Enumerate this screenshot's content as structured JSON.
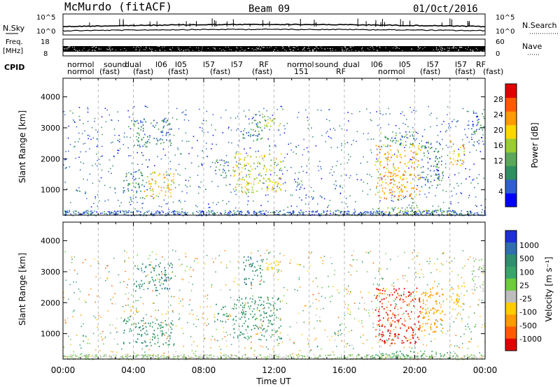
{
  "header": {
    "station": "McMurdo (fitACF)",
    "beam": "Beam 09",
    "date": "01/Oct/2016"
  },
  "top_panels": {
    "noise": {
      "left_label": "N.Sky",
      "right_label": "N.Search",
      "left_ticks": [
        "10^5",
        "10^0"
      ],
      "right_ticks": [
        "10^5",
        "10^0"
      ]
    },
    "freq_nave": {
      "left_label_1": "Freq.",
      "left_label_2": "[MHz]",
      "right_label": "Nave",
      "left_ticks": [
        "18",
        "8"
      ],
      "right_ticks": [
        "60",
        "0"
      ]
    },
    "cpid": {
      "left_label": "CPID",
      "modes_row1": [
        "normol",
        "sound",
        "dual",
        "l06",
        "l05",
        "l57",
        "l57",
        "RF"
      ],
      "modes_row2": [
        "normol",
        "(fast)",
        "(fast)",
        "(fast)",
        "(fast)",
        "(fast)",
        "151",
        "RF"
      ]
    }
  },
  "chart_data": [
    {
      "type": "heatmap",
      "name": "power",
      "ylabel": "Slant Range [km]",
      "ylim": [
        180,
        4600
      ],
      "yticks": [
        1000,
        2000,
        3000,
        4000
      ],
      "xlim_hours": [
        0,
        24
      ],
      "colorbar": {
        "label": "Power [dB]",
        "range": [
          0,
          32
        ],
        "ticks": [
          "4",
          "8",
          "12",
          "16",
          "20",
          "24",
          "28"
        ],
        "colors": [
          "#0000ff",
          "#2f5fd0",
          "#2f8f60",
          "#5aa95a",
          "#9acd32",
          "#ffd700",
          "#ff9a00",
          "#ff5a00",
          "#e00000"
        ]
      },
      "regions": [
        {
          "t0": 0.7,
          "t1": 1.3,
          "r0": 850,
          "r1": 1050,
          "value": 8
        },
        {
          "t0": 3.4,
          "t1": 4.6,
          "r0": 700,
          "r1": 1600,
          "value": 10
        },
        {
          "t0": 4.6,
          "t1": 6.3,
          "r0": 750,
          "r1": 1600,
          "value": 20
        },
        {
          "t0": 4.0,
          "t1": 6.2,
          "r0": 2400,
          "r1": 3300,
          "value": 9
        },
        {
          "t0": 8.6,
          "t1": 9.4,
          "r0": 1400,
          "r1": 2000,
          "value": 9
        },
        {
          "t0": 9.6,
          "t1": 12.4,
          "r0": 900,
          "r1": 2200,
          "value": 18
        },
        {
          "t0": 10.2,
          "t1": 11.4,
          "r0": 2600,
          "r1": 3500,
          "value": 10
        },
        {
          "t0": 11.4,
          "t1": 12.4,
          "r0": 3000,
          "r1": 3400,
          "value": 16
        },
        {
          "t0": 13.2,
          "t1": 13.6,
          "r0": 1000,
          "r1": 1500,
          "value": 8
        },
        {
          "t0": 15.4,
          "t1": 15.8,
          "r0": 900,
          "r1": 1300,
          "value": 8
        },
        {
          "t0": 17.7,
          "t1": 20.3,
          "r0": 700,
          "r1": 2500,
          "value": 22
        },
        {
          "t0": 18.0,
          "t1": 20.0,
          "r0": 2400,
          "r1": 2900,
          "value": 10
        },
        {
          "t0": 20.3,
          "t1": 21.6,
          "r0": 1000,
          "r1": 2600,
          "value": 8
        },
        {
          "t0": 22.0,
          "t1": 22.8,
          "r0": 1800,
          "r1": 2600,
          "value": 22
        },
        {
          "t0": 23.2,
          "t1": 23.9,
          "r0": 2400,
          "r1": 3500,
          "value": 8
        },
        {
          "t0": 17.5,
          "t1": 22.0,
          "r0": 200,
          "r1": 450,
          "value": 14
        }
      ]
    },
    {
      "type": "heatmap",
      "name": "velocity",
      "ylabel": "Slant Range [km]",
      "xlabel": "Time UT",
      "ylim": [
        180,
        4600
      ],
      "yticks": [
        1000,
        2000,
        3000,
        4000
      ],
      "xlim_hours": [
        0,
        24
      ],
      "xticks": [
        "00:00",
        "04:00",
        "08:00",
        "12:00",
        "16:00",
        "20:00",
        "00:00"
      ],
      "colorbar": {
        "label": "Velocity [m s⁻¹]",
        "ticks": [
          "1000",
          "500",
          "100",
          "25",
          "-25",
          "-100",
          "-500",
          "-1000"
        ],
        "colors": [
          "#1e2fd8",
          "#2f6fb0",
          "#2f8f6f",
          "#3aa56a",
          "#6ccc3c",
          "#bdbdbd",
          "#ffcc00",
          "#ff9a00",
          "#ff5a00",
          "#e00000"
        ]
      },
      "regions": [
        {
          "t0": 1.1,
          "t1": 1.4,
          "r0": 850,
          "r1": 1050,
          "value": 200
        },
        {
          "t0": 3.4,
          "t1": 4.6,
          "r0": 700,
          "r1": 1600,
          "value": 300
        },
        {
          "t0": 4.6,
          "t1": 6.3,
          "r0": 600,
          "r1": 1500,
          "value": 300
        },
        {
          "t0": 4.0,
          "t1": 6.2,
          "r0": 2400,
          "r1": 3300,
          "value": 400
        },
        {
          "t0": 8.6,
          "t1": 9.4,
          "r0": 1400,
          "r1": 2000,
          "value": 250
        },
        {
          "t0": 9.6,
          "t1": 12.4,
          "r0": 800,
          "r1": 2200,
          "value": 300
        },
        {
          "t0": 10.2,
          "t1": 11.4,
          "r0": 2600,
          "r1": 3500,
          "value": 400
        },
        {
          "t0": 11.4,
          "t1": 12.4,
          "r0": 3000,
          "r1": 3400,
          "value": -60
        },
        {
          "t0": 15.4,
          "t1": 15.8,
          "r0": 900,
          "r1": 1300,
          "value": 300
        },
        {
          "t0": 17.7,
          "t1": 20.3,
          "r0": 700,
          "r1": 2500,
          "value": -600
        },
        {
          "t0": 20.3,
          "t1": 21.6,
          "r0": 1000,
          "r1": 2600,
          "value": -120
        },
        {
          "t0": 22.0,
          "t1": 22.8,
          "r0": 1800,
          "r1": 2600,
          "value": -90
        },
        {
          "t0": 23.2,
          "t1": 23.9,
          "r0": 2400,
          "r1": 3500,
          "value": 20
        },
        {
          "t0": 17.5,
          "t1": 22.0,
          "r0": 200,
          "r1": 450,
          "value": 150
        }
      ]
    }
  ]
}
